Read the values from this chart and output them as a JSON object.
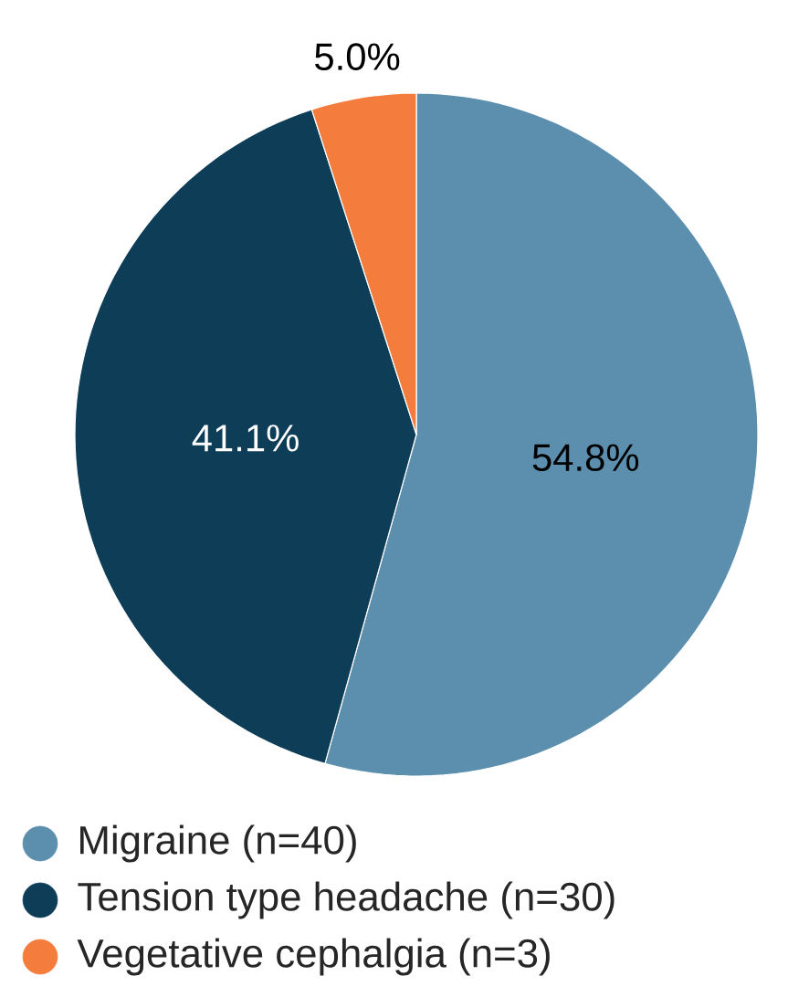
{
  "chart_data": {
    "type": "pie",
    "categories": [
      "Migraine (n=40)",
      "Tension type headache (n=30)",
      "Vegetative cephalgia (n=3)"
    ],
    "values": [
      54.8,
      41.1,
      5.0
    ],
    "value_labels": [
      "54.8%",
      "41.1%",
      "5.0%"
    ],
    "colors": [
      "#5b8fad",
      "#0e3d58",
      "#f47c3c"
    ],
    "legend": "bottom"
  }
}
